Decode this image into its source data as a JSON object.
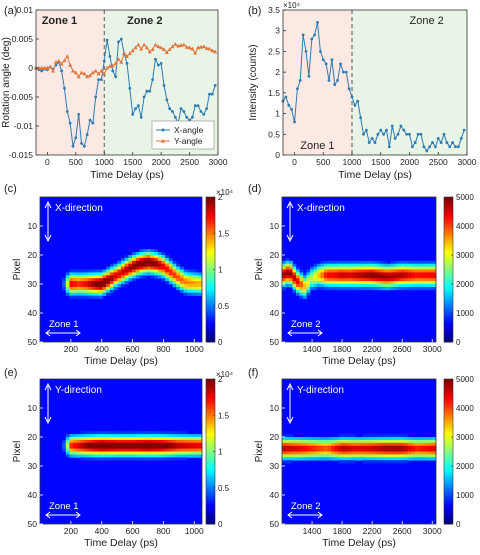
{
  "figure": {
    "panel_letters": [
      "(a)",
      "(b)",
      "(c)",
      "(d)",
      "(e)",
      "(f)"
    ]
  },
  "colors": {
    "zone1_fill": "#fde9e3",
    "zone2_fill": "#e8f4e6",
    "x_angle": "#2e7bb4",
    "y_angle": "#e0763a",
    "divider": "#555555",
    "colormap": [
      "#00007f",
      "#0000ff",
      "#007fff",
      "#00ffff",
      "#7fff7f",
      "#ffff00",
      "#ff7f00",
      "#ff0000",
      "#7f0000"
    ]
  },
  "chart_data": [
    {
      "id": "a",
      "type": "line",
      "xlabel": "Time Delay (ps)",
      "ylabel": "Rotation angle (deg)",
      "xlim": [
        -200,
        3000
      ],
      "ylim": [
        -0.015,
        0.01
      ],
      "xticks": [
        "0",
        "500",
        "1000",
        "1500",
        "2000",
        "2500",
        "3000"
      ],
      "yticks": [
        "-0.015",
        "-0.01",
        "-0.005",
        "0",
        "0.005",
        "0.01"
      ],
      "zones": [
        {
          "label": "Zone 1",
          "from": -200,
          "to": 1000
        },
        {
          "label": "Zone 2",
          "from": 1000,
          "to": 3000
        }
      ],
      "legend": {
        "position": "bottom-right",
        "entries": [
          "X-angle",
          "Y-angle"
        ]
      },
      "series": [
        {
          "name": "X-angle",
          "marker": "circle",
          "x": [
            -200,
            -150,
            -100,
            -50,
            0,
            50,
            100,
            150,
            200,
            250,
            300,
            350,
            400,
            450,
            500,
            550,
            600,
            650,
            700,
            750,
            800,
            850,
            900,
            950,
            1000,
            1050,
            1100,
            1150,
            1200,
            1250,
            1300,
            1350,
            1400,
            1450,
            1500,
            1550,
            1600,
            1650,
            1700,
            1750,
            1800,
            1850,
            1900,
            1950,
            2000,
            2050,
            2100,
            2150,
            2200,
            2250,
            2300,
            2350,
            2400,
            2450,
            2500,
            2550,
            2600,
            2650,
            2700,
            2750,
            2800,
            2850,
            2900,
            2950
          ],
          "values": [
            0,
            -0.0003,
            -0.0005,
            -0.0002,
            -0.0003,
            0.0002,
            -0.0002,
            0.0005,
            0.001,
            -0.0005,
            -0.0035,
            -0.0075,
            -0.0095,
            -0.0135,
            -0.012,
            -0.008,
            -0.013,
            -0.0135,
            -0.0115,
            -0.009,
            -0.0095,
            -0.005,
            -0.002,
            -0.002,
            0.0012,
            0.0048,
            0.002,
            -0.0005,
            -0.0015,
            0.0045,
            0.005,
            0.0025,
            0.0008,
            -0.0035,
            -0.008,
            -0.007,
            -0.0065,
            -0.0085,
            -0.005,
            -0.004,
            -0.004,
            -0.002,
            0.0015,
            0.0005,
            0.0008,
            -0.003,
            -0.0055,
            -0.007,
            -0.0075,
            -0.0085,
            -0.0095,
            -0.007,
            -0.0075,
            -0.0085,
            -0.009,
            -0.0085,
            -0.0065,
            -0.0065,
            -0.0075,
            -0.008,
            -0.007,
            -0.0045,
            -0.0045,
            -0.003
          ]
        },
        {
          "name": "Y-angle",
          "marker": "triangle",
          "x": [
            -200,
            -150,
            -100,
            -50,
            0,
            50,
            100,
            150,
            200,
            250,
            300,
            350,
            400,
            450,
            500,
            550,
            600,
            650,
            700,
            750,
            800,
            850,
            900,
            950,
            1000,
            1050,
            1100,
            1150,
            1200,
            1250,
            1300,
            1350,
            1400,
            1450,
            1500,
            1550,
            1600,
            1650,
            1700,
            1750,
            1800,
            1850,
            1900,
            1950,
            2000,
            2050,
            2100,
            2150,
            2200,
            2250,
            2300,
            2350,
            2400,
            2450,
            2500,
            2550,
            2600,
            2650,
            2700,
            2750,
            2800,
            2850,
            2900,
            2950
          ],
          "values": [
            0,
            0,
            0,
            0,
            0,
            0.0002,
            -0.0005,
            0.001,
            0.0012,
            0.0007,
            0.0013,
            0.002,
            0.0005,
            -0.0005,
            -0.0008,
            -0.0015,
            -0.0008,
            -0.001,
            -0.0015,
            -0.0013,
            -0.0008,
            -0.0005,
            -0.001,
            -0.0005,
            -0.001,
            0,
            0.0003,
            0.0004,
            0.0008,
            0.0015,
            0.001,
            0.0025,
            0.002,
            0.0025,
            0.003,
            0.0035,
            0.004,
            0.0033,
            0.004,
            0.0035,
            0.0028,
            0.0032,
            0.004,
            0.0037,
            0.0035,
            0.0032,
            0.0027,
            0.0032,
            0.0037,
            0.0041,
            0.0038,
            0.0039,
            0.004,
            0.0036,
            0.0035,
            0.0033,
            0.0026,
            0.0035,
            0.0036,
            0.0037,
            0.0034,
            0.0033,
            0.003,
            0.0028
          ]
        }
      ]
    },
    {
      "id": "b",
      "type": "line",
      "xlabel": "Time Delay (ps)",
      "ylabel": "Intensity (counts)",
      "y_multiplier": "×10⁴",
      "xlim": [
        -200,
        3000
      ],
      "ylim": [
        0,
        3.5
      ],
      "xticks": [
        "0",
        "500",
        "1000",
        "1500",
        "2000",
        "2500",
        "3000"
      ],
      "yticks": [
        "0",
        "0.5",
        "1",
        "1.5",
        "2",
        "2.5",
        "3",
        "3.5"
      ],
      "zones": [
        {
          "label": "Zone 1",
          "from": -200,
          "to": 1000
        },
        {
          "label": "Zone 2",
          "from": 1000,
          "to": 3000
        }
      ],
      "series": [
        {
          "name": "",
          "marker": "circle",
          "x": [
            -200,
            -150,
            -100,
            -50,
            0,
            50,
            100,
            150,
            200,
            250,
            300,
            350,
            400,
            450,
            500,
            550,
            600,
            650,
            700,
            750,
            800,
            850,
            900,
            950,
            1000,
            1050,
            1100,
            1150,
            1200,
            1250,
            1300,
            1350,
            1400,
            1450,
            1500,
            1550,
            1600,
            1650,
            1700,
            1750,
            1800,
            1850,
            1900,
            1950,
            2000,
            2050,
            2100,
            2150,
            2200,
            2250,
            2300,
            2350,
            2400,
            2450,
            2500,
            2550,
            2600,
            2650,
            2700,
            2750,
            2800,
            2850,
            2900,
            2950
          ],
          "values": [
            1.3,
            1.4,
            1.2,
            1.1,
            0.8,
            1.6,
            1.8,
            2.9,
            2.5,
            1.9,
            2.8,
            2.9,
            3.2,
            2.5,
            2.3,
            2.2,
            1.8,
            2.3,
            1.7,
            1.8,
            2.2,
            2.0,
            2.0,
            1.6,
            1.4,
            1.2,
            1.3,
            0.9,
            0.5,
            0.6,
            0.3,
            0.4,
            0.3,
            0.5,
            0.6,
            0.5,
            0.6,
            0.2,
            0.7,
            0.4,
            0.5,
            0.7,
            0.6,
            0.5,
            0.5,
            0.2,
            0.3,
            0.5,
            0.5,
            0.2,
            0.1,
            0.2,
            0.3,
            0.2,
            0.4,
            0.3,
            0.5,
            0.3,
            0.2,
            0.3,
            0.2,
            0.2,
            0.4,
            0.6
          ]
        }
      ]
    },
    {
      "id": "c",
      "type": "heatmap",
      "xlabel": "Time Delay (ps)",
      "ylabel": "Pixel",
      "xlim": [
        0,
        1050
      ],
      "ylim": [
        0,
        50
      ],
      "xticks": [
        "200",
        "400",
        "600",
        "800",
        "1000"
      ],
      "yticks": [
        "10",
        "20",
        "30",
        "40",
        "50"
      ],
      "colorbar": {
        "min": 0,
        "max": 20000,
        "ticks": [
          "0",
          "0.5",
          "1",
          "1.5",
          "2"
        ],
        "multiplier": "×10⁴"
      },
      "direction_label": "X-direction",
      "zone_label": "Zone 1",
      "center_x": [
        0,
        150,
        200,
        250,
        300,
        350,
        400,
        450,
        500,
        550,
        600,
        650,
        700,
        750,
        800,
        850,
        900,
        950,
        1050
      ],
      "center_y": [
        30,
        30,
        30,
        30,
        30,
        30,
        30,
        28.5,
        27,
        25.5,
        24,
        23,
        22.5,
        23,
        24,
        26,
        28,
        29.5,
        30
      ],
      "width": 2.5,
      "peak": [
        3000,
        3000,
        18000,
        17000,
        18000,
        20000,
        22000,
        20000,
        18000,
        19000,
        20000,
        21000,
        21000,
        20000,
        18000,
        17000,
        16000,
        15000,
        14000
      ]
    },
    {
      "id": "d",
      "type": "heatmap",
      "xlabel": "Time Delay (ps)",
      "ylabel": "Pixel",
      "xlim": [
        1000,
        3050
      ],
      "ylim": [
        0,
        50
      ],
      "xticks": [
        "1400",
        "1800",
        "2200",
        "2600",
        "3000"
      ],
      "yticks": [
        "10",
        "20",
        "30",
        "40",
        "50"
      ],
      "colorbar": {
        "min": 0,
        "max": 5000,
        "ticks": [
          "0",
          "1000",
          "2000",
          "3000",
          "4000",
          "5000"
        ]
      },
      "direction_label": "X-direction",
      "zone_label": "Zone 2",
      "center_x": [
        1000,
        1100,
        1200,
        1300,
        1400,
        1500,
        1600,
        1700,
        1800,
        1900,
        2000,
        2200,
        2400,
        2600,
        2800,
        3050
      ],
      "center_y": [
        27,
        26,
        29,
        31,
        28,
        27,
        27,
        27,
        27,
        27,
        27,
        27,
        27.5,
        27,
        27,
        27
      ],
      "width": 2.6,
      "peak": [
        4800,
        5000,
        4600,
        3500,
        2800,
        3500,
        4500,
        4500,
        4700,
        4600,
        4800,
        5000,
        4900,
        4800,
        4400,
        4500
      ]
    },
    {
      "id": "e",
      "type": "heatmap",
      "xlabel": "Time Delay (ps)",
      "ylabel": "Pixel",
      "xlim": [
        0,
        1050
      ],
      "ylim": [
        0,
        50
      ],
      "xticks": [
        "200",
        "400",
        "600",
        "800",
        "1000"
      ],
      "yticks": [
        "10",
        "20",
        "30",
        "40",
        "50"
      ],
      "colorbar": {
        "min": 0,
        "max": 20000,
        "ticks": [
          "0",
          "0.5",
          "1",
          "1.5",
          "2"
        ],
        "multiplier": "×10⁴"
      },
      "direction_label": "Y-direction",
      "zone_label": "Zone 1",
      "center_x": [
        0,
        150,
        200,
        300,
        400,
        500,
        600,
        700,
        800,
        900,
        1050
      ],
      "center_y": [
        23,
        23,
        23,
        23,
        23,
        23,
        23,
        23,
        23,
        23,
        23
      ],
      "width": 2.4,
      "peak": [
        3000,
        3000,
        17000,
        20000,
        22000,
        21000,
        21000,
        22000,
        21000,
        19000,
        18000
      ]
    },
    {
      "id": "f",
      "type": "heatmap",
      "xlabel": "Time Delay (ps)",
      "ylabel": "Pixel",
      "xlim": [
        1000,
        3050
      ],
      "ylim": [
        0,
        50
      ],
      "xticks": [
        "1400",
        "1800",
        "2200",
        "2600",
        "3000"
      ],
      "yticks": [
        "10",
        "20",
        "30",
        "40",
        "50"
      ],
      "colorbar": {
        "min": 0,
        "max": 5000,
        "ticks": [
          "0",
          "1000",
          "2000",
          "3000",
          "4000",
          "5000"
        ]
      },
      "direction_label": "Y-direction",
      "zone_label": "Zone 2",
      "center_x": [
        1000,
        1200,
        1400,
        1600,
        1800,
        2000,
        2200,
        2400,
        2600,
        2800,
        3050
      ],
      "center_y": [
        24,
        24,
        24,
        24,
        24,
        24,
        24,
        24,
        24,
        24,
        24
      ],
      "width": 2.4,
      "peak": [
        4800,
        4600,
        4300,
        4000,
        4800,
        4600,
        4700,
        4900,
        4900,
        4300,
        4600
      ]
    }
  ]
}
